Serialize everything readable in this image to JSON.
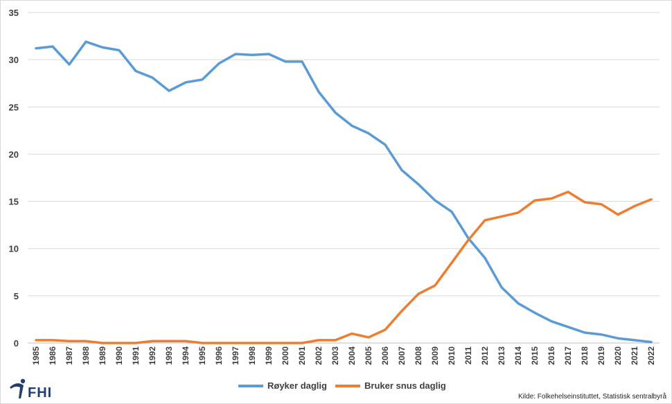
{
  "chart_data": {
    "type": "line",
    "title": "",
    "xlabel": "",
    "ylabel": "",
    "ylim": [
      0,
      35
    ],
    "yticks": [
      0,
      5,
      10,
      15,
      20,
      25,
      30,
      35
    ],
    "grid": "horizontal",
    "legend_position": "bottom",
    "x": [
      "1985",
      "1986",
      "1987",
      "1988",
      "1989",
      "1990",
      "1991",
      "1992",
      "1993",
      "1994",
      "1995",
      "1996",
      "1997",
      "1998",
      "1999",
      "2000",
      "2001",
      "2002",
      "2003",
      "2004",
      "2005",
      "2006",
      "2007",
      "2008",
      "2009",
      "2010",
      "2011",
      "2012",
      "2013",
      "2014",
      "2015",
      "2016",
      "2017",
      "2018",
      "2019",
      "2020",
      "2021",
      "2022"
    ],
    "series": [
      {
        "name": "Røyker daglig",
        "color": "#5b9bd5",
        "values": [
          31.2,
          31.4,
          29.5,
          31.9,
          31.3,
          31.0,
          28.8,
          28.1,
          26.7,
          27.6,
          27.9,
          29.6,
          30.6,
          30.5,
          30.6,
          29.8,
          29.8,
          26.6,
          24.4,
          23.0,
          22.2,
          21.0,
          18.3,
          16.8,
          15.1,
          13.9,
          11.1,
          9.0,
          5.9,
          4.2,
          3.2,
          2.3,
          1.7,
          1.1,
          0.9,
          0.5,
          0.3,
          0.1
        ]
      },
      {
        "name": "Bruker snus daglig",
        "color": "#ed7d31",
        "values": [
          0.3,
          0.3,
          0.2,
          0.2,
          0.0,
          0.0,
          0.0,
          0.2,
          0.2,
          0.2,
          0.0,
          0.0,
          0.0,
          0.0,
          0.0,
          0.0,
          0.0,
          0.3,
          0.3,
          1.0,
          0.6,
          1.4,
          3.4,
          5.2,
          6.1,
          8.5,
          10.9,
          13.0,
          13.4,
          13.8,
          15.1,
          15.3,
          16.0,
          14.9,
          14.7,
          13.6,
          14.5,
          15.2
        ]
      }
    ]
  },
  "logo": {
    "text": "FHI",
    "color": "#1f3f6e"
  },
  "source": "Kilde: Folkehelseinstituttet, Statistisk sentralbyrå"
}
